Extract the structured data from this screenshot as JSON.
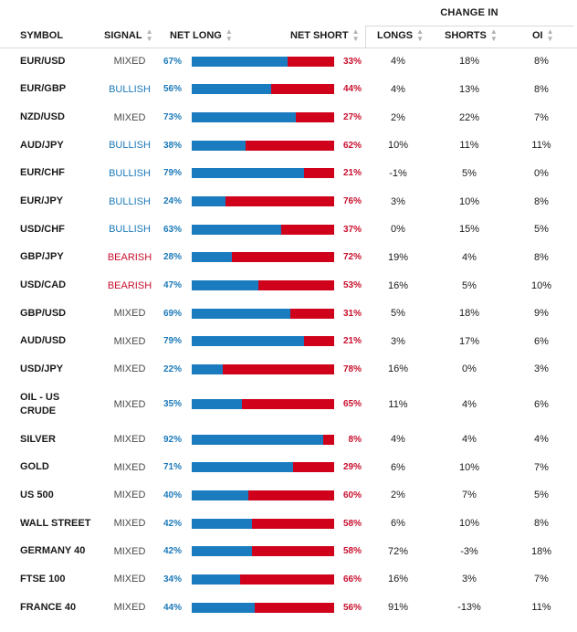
{
  "headers": {
    "change_in": "CHANGE IN",
    "symbol": "SYMBOL",
    "signal": "SIGNAL",
    "net_long": "NET LONG",
    "net_short": "NET SHORT",
    "longs": "LONGS",
    "shorts": "SHORTS",
    "oi": "OI",
    "sort_icon": "sort-arrows-icon"
  },
  "colors": {
    "long": "#1b7bbf",
    "short": "#d0021b",
    "bullish": "#1c7ab9",
    "bearish": "#c8102e",
    "mixed": "#4a4a4a"
  },
  "rows": [
    {
      "symbol": "EUR/USD",
      "signal": "MIXED",
      "net_long": "67%",
      "long_pct": 67,
      "net_short": "33%",
      "longs": "4%",
      "shorts": "18%",
      "oi": "8%"
    },
    {
      "symbol": "EUR/GBP",
      "signal": "BULLISH",
      "net_long": "56%",
      "long_pct": 56,
      "net_short": "44%",
      "longs": "4%",
      "shorts": "13%",
      "oi": "8%"
    },
    {
      "symbol": "NZD/USD",
      "signal": "MIXED",
      "net_long": "73%",
      "long_pct": 73,
      "net_short": "27%",
      "longs": "2%",
      "shorts": "22%",
      "oi": "7%"
    },
    {
      "symbol": "AUD/JPY",
      "signal": "BULLISH",
      "net_long": "38%",
      "long_pct": 38,
      "net_short": "62%",
      "longs": "10%",
      "shorts": "11%",
      "oi": "11%"
    },
    {
      "symbol": "EUR/CHF",
      "signal": "BULLISH",
      "net_long": "79%",
      "long_pct": 79,
      "net_short": "21%",
      "longs": "-1%",
      "shorts": "5%",
      "oi": "0%"
    },
    {
      "symbol": "EUR/JPY",
      "signal": "BULLISH",
      "net_long": "24%",
      "long_pct": 24,
      "net_short": "76%",
      "longs": "3%",
      "shorts": "10%",
      "oi": "8%"
    },
    {
      "symbol": "USD/CHF",
      "signal": "BULLISH",
      "net_long": "63%",
      "long_pct": 63,
      "net_short": "37%",
      "longs": "0%",
      "shorts": "15%",
      "oi": "5%"
    },
    {
      "symbol": "GBP/JPY",
      "signal": "BEARISH",
      "net_long": "28%",
      "long_pct": 28,
      "net_short": "72%",
      "longs": "19%",
      "shorts": "4%",
      "oi": "8%"
    },
    {
      "symbol": "USD/CAD",
      "signal": "BEARISH",
      "net_long": "47%",
      "long_pct": 47,
      "net_short": "53%",
      "longs": "16%",
      "shorts": "5%",
      "oi": "10%"
    },
    {
      "symbol": "GBP/USD",
      "signal": "MIXED",
      "net_long": "69%",
      "long_pct": 69,
      "net_short": "31%",
      "longs": "5%",
      "shorts": "18%",
      "oi": "9%"
    },
    {
      "symbol": "AUD/USD",
      "signal": "MIXED",
      "net_long": "79%",
      "long_pct": 79,
      "net_short": "21%",
      "longs": "3%",
      "shorts": "17%",
      "oi": "6%"
    },
    {
      "symbol": "USD/JPY",
      "signal": "MIXED",
      "net_long": "22%",
      "long_pct": 22,
      "net_short": "78%",
      "longs": "16%",
      "shorts": "0%",
      "oi": "3%"
    },
    {
      "symbol": "OIL - US CRUDE",
      "signal": "MIXED",
      "net_long": "35%",
      "long_pct": 35,
      "net_short": "65%",
      "longs": "11%",
      "shorts": "4%",
      "oi": "6%"
    },
    {
      "symbol": "SILVER",
      "signal": "MIXED",
      "net_long": "92%",
      "long_pct": 92,
      "net_short": "8%",
      "longs": "4%",
      "shorts": "4%",
      "oi": "4%"
    },
    {
      "symbol": "GOLD",
      "signal": "MIXED",
      "net_long": "71%",
      "long_pct": 71,
      "net_short": "29%",
      "longs": "6%",
      "shorts": "10%",
      "oi": "7%"
    },
    {
      "symbol": "US 500",
      "signal": "MIXED",
      "net_long": "40%",
      "long_pct": 40,
      "net_short": "60%",
      "longs": "2%",
      "shorts": "7%",
      "oi": "5%"
    },
    {
      "symbol": "WALL STREET",
      "signal": "MIXED",
      "net_long": "42%",
      "long_pct": 42,
      "net_short": "58%",
      "longs": "6%",
      "shorts": "10%",
      "oi": "8%"
    },
    {
      "symbol": "GERMANY 40",
      "signal": "MIXED",
      "net_long": "42%",
      "long_pct": 42,
      "net_short": "58%",
      "longs": "72%",
      "shorts": "-3%",
      "oi": "18%"
    },
    {
      "symbol": "FTSE 100",
      "signal": "MIXED",
      "net_long": "34%",
      "long_pct": 34,
      "net_short": "66%",
      "longs": "16%",
      "shorts": "3%",
      "oi": "7%"
    },
    {
      "symbol": "FRANCE 40",
      "signal": "MIXED",
      "net_long": "44%",
      "long_pct": 44,
      "net_short": "56%",
      "longs": "91%",
      "shorts": "-13%",
      "oi": "11%"
    }
  ]
}
